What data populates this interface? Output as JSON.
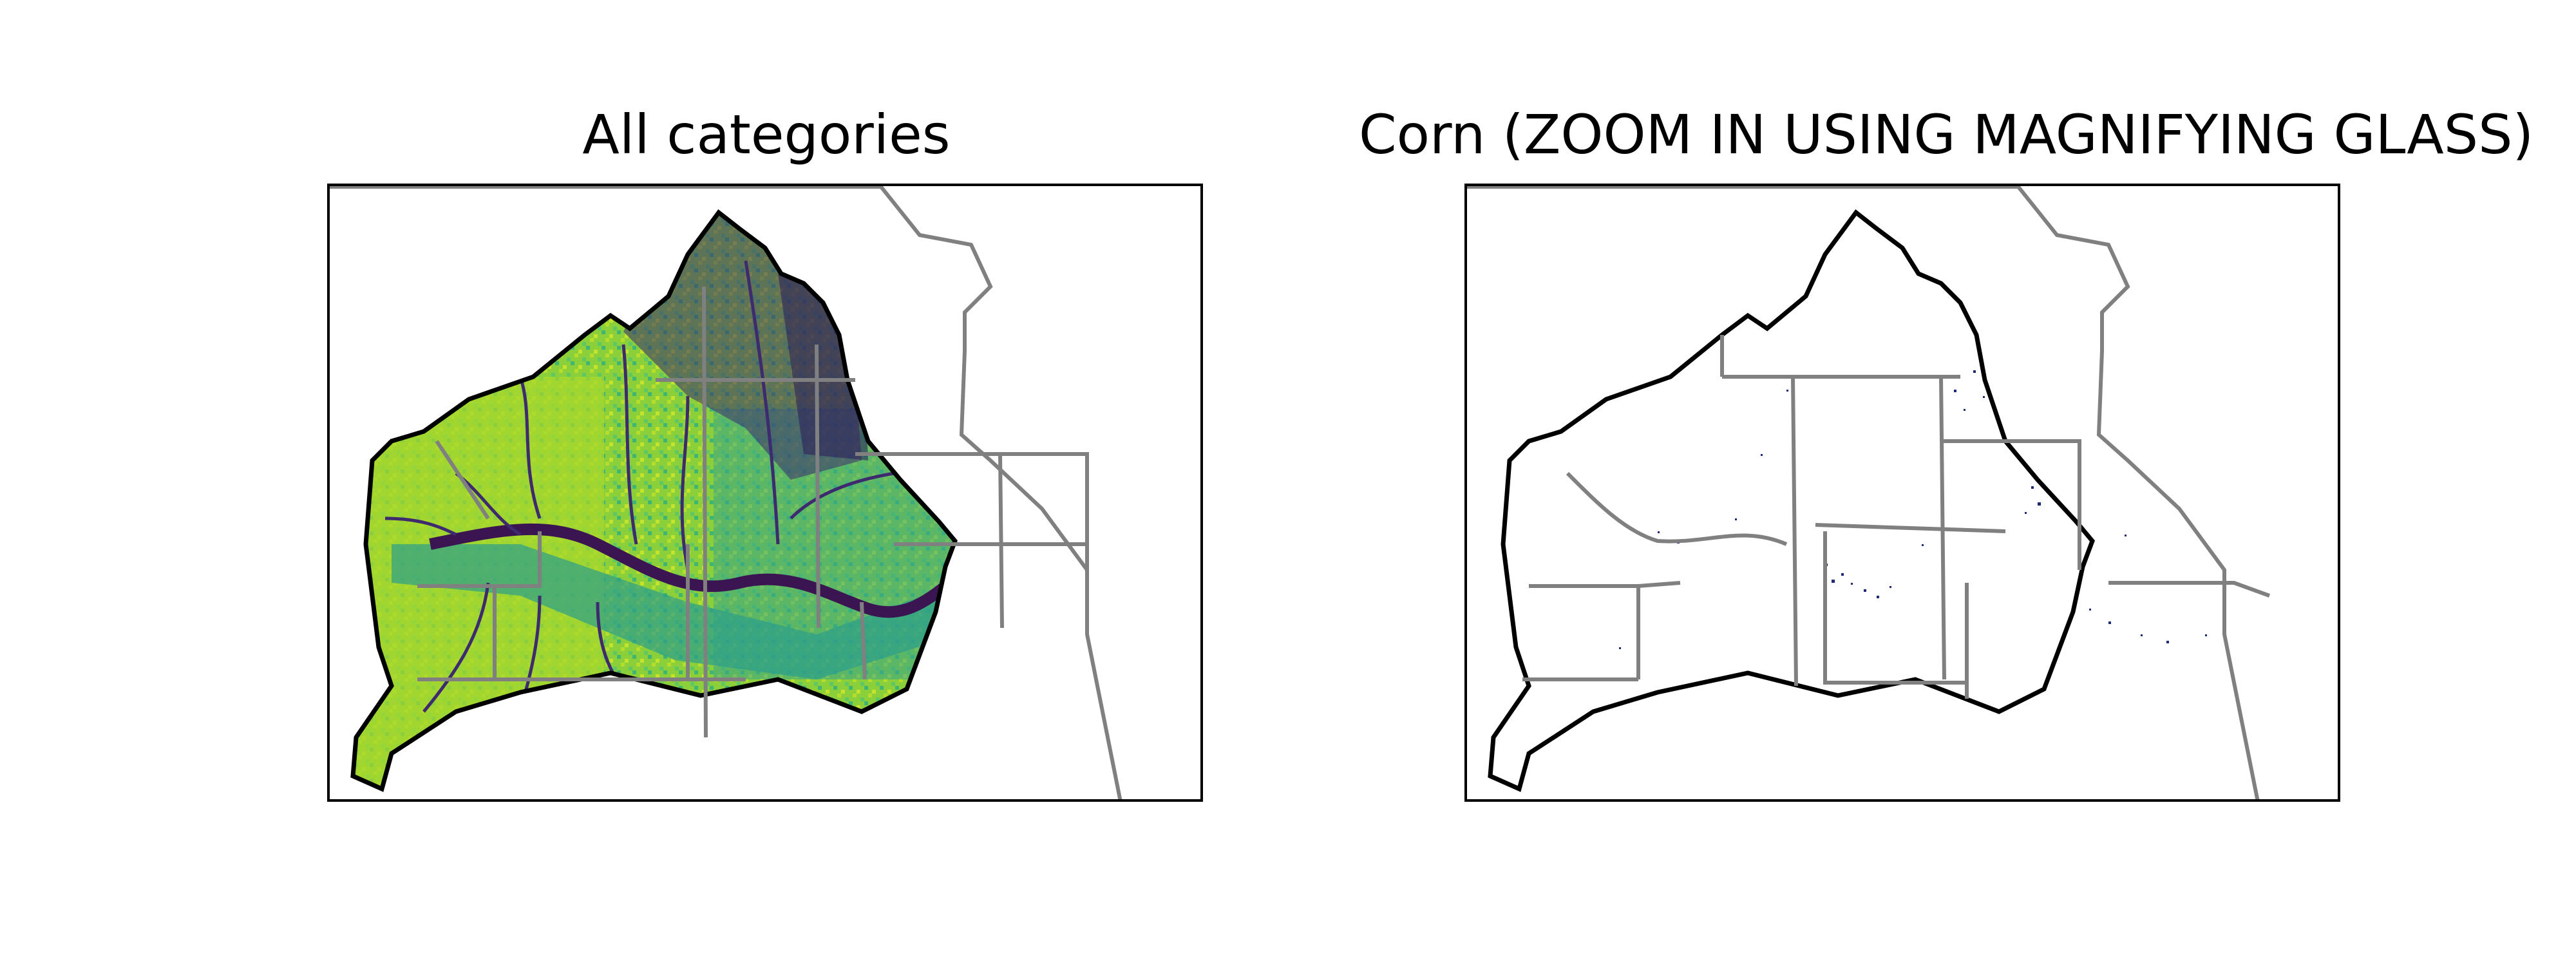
{
  "panels": [
    {
      "title": "All categories",
      "content": "landcover-all-categories",
      "colors": {
        "frame": "#000000",
        "boundary": "#000000",
        "state-lines": "#808080",
        "high": "#a6d82a",
        "mid": "#4db86a",
        "teal": "#2ba08c",
        "low": "#3b1f5c"
      }
    },
    {
      "title": "Corn (ZOOM IN USING MAGNIFYING GLASS)",
      "content": "landcover-corn-only",
      "colors": {
        "frame": "#000000",
        "boundary": "#000000",
        "state-lines": "#808080",
        "corn-pixels": "#1e2a78"
      }
    }
  ]
}
